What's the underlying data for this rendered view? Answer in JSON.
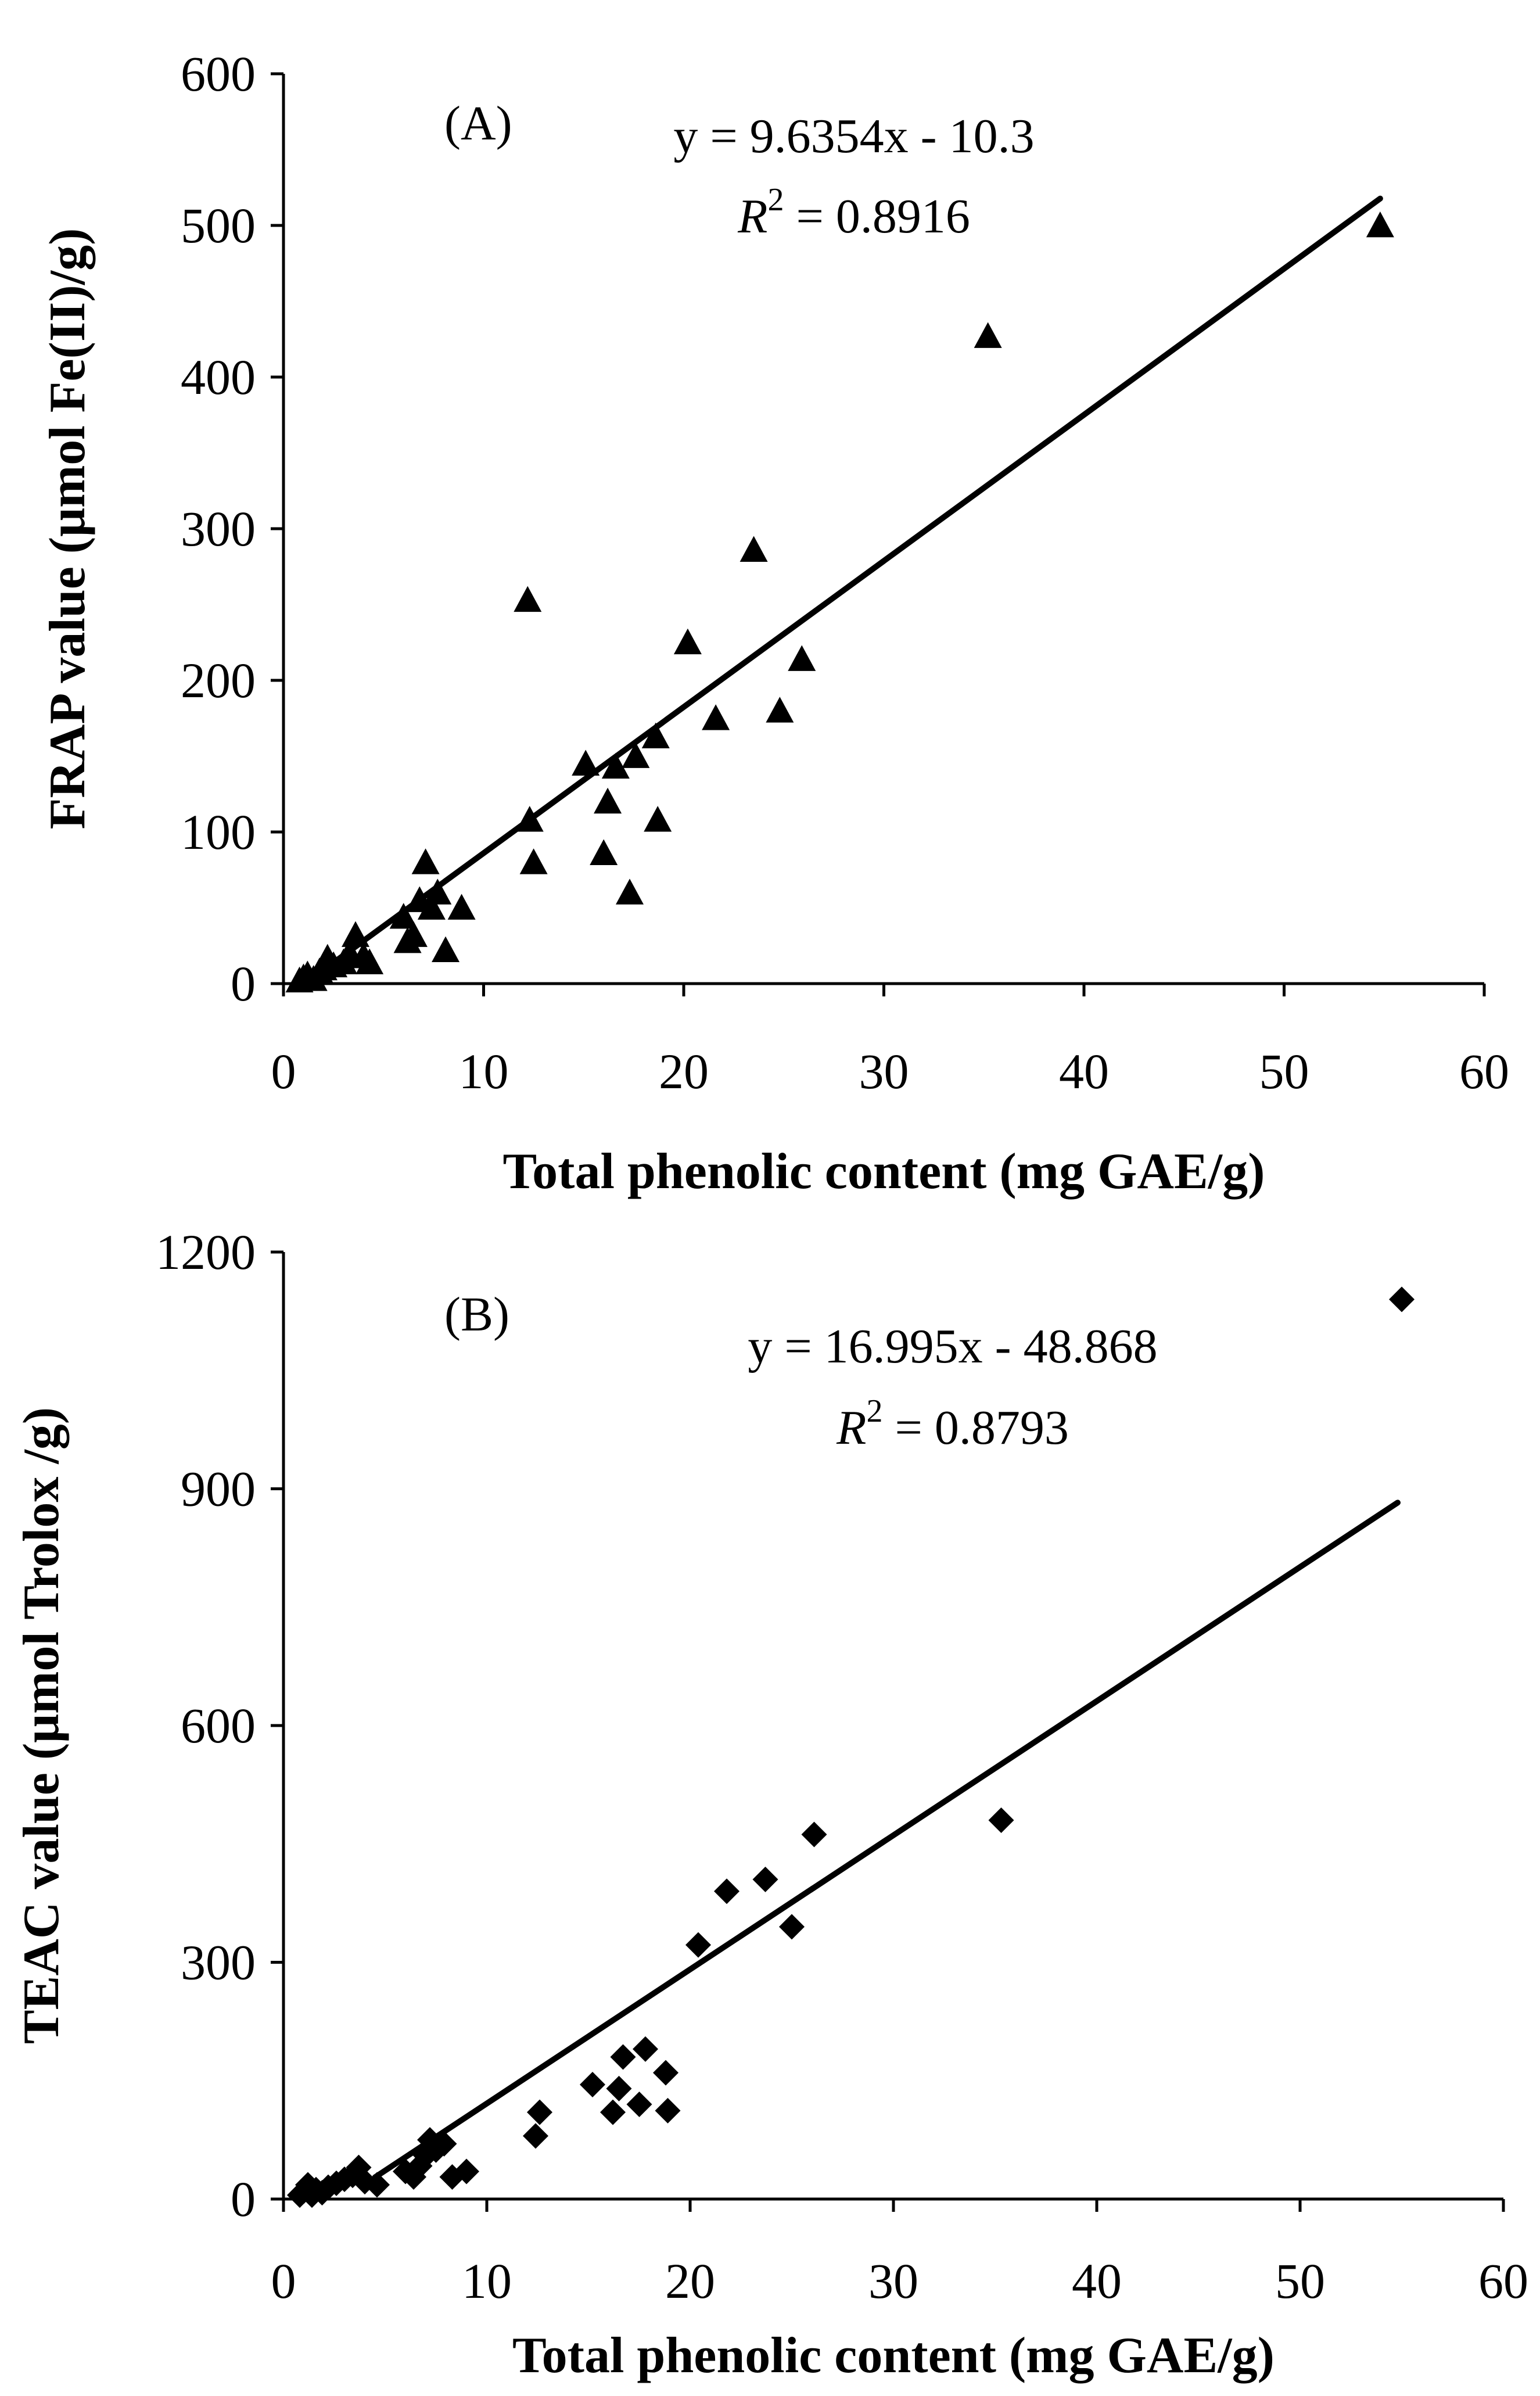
{
  "chart_data": [
    {
      "type": "scatter",
      "panel_label": "(A)",
      "xlabel": "Total phenolic content (mg GAE/g)",
      "ylabel": "FRAP value (μmol Fe(II)/g)",
      "xlim": [
        0,
        60
      ],
      "ylim": [
        0,
        600
      ],
      "xticks": [
        "0",
        "10",
        "20",
        "30",
        "40",
        "50",
        "60"
      ],
      "yticks": [
        "0",
        "100",
        "200",
        "300",
        "400",
        "500",
        "600"
      ],
      "marker": "triangle",
      "equation": "y = 9.6354x - 10.3",
      "r2_symbol": "R",
      "r2_exp": "2",
      "r2_value": " = 0.8916",
      "fit": {
        "slope": 9.6354,
        "intercept": -10.3,
        "x_range": [
          1.1,
          54.8
        ]
      },
      "points": [
        {
          "x": 0.8,
          "y": 2
        },
        {
          "x": 1.0,
          "y": 4
        },
        {
          "x": 1.2,
          "y": 6
        },
        {
          "x": 1.5,
          "y": 3
        },
        {
          "x": 1.8,
          "y": 8
        },
        {
          "x": 2.0,
          "y": 10
        },
        {
          "x": 2.2,
          "y": 17
        },
        {
          "x": 2.5,
          "y": 12
        },
        {
          "x": 3.0,
          "y": 14
        },
        {
          "x": 3.3,
          "y": 20
        },
        {
          "x": 3.6,
          "y": 32
        },
        {
          "x": 4.0,
          "y": 18
        },
        {
          "x": 4.3,
          "y": 14
        },
        {
          "x": 6.0,
          "y": 44
        },
        {
          "x": 6.2,
          "y": 28
        },
        {
          "x": 6.5,
          "y": 32
        },
        {
          "x": 6.8,
          "y": 55
        },
        {
          "x": 7.1,
          "y": 80
        },
        {
          "x": 7.4,
          "y": 50
        },
        {
          "x": 7.7,
          "y": 60
        },
        {
          "x": 8.1,
          "y": 22
        },
        {
          "x": 8.9,
          "y": 50
        },
        {
          "x": 12.2,
          "y": 253
        },
        {
          "x": 12.3,
          "y": 108
        },
        {
          "x": 12.5,
          "y": 80
        },
        {
          "x": 15.1,
          "y": 145
        },
        {
          "x": 16.0,
          "y": 86
        },
        {
          "x": 16.2,
          "y": 120
        },
        {
          "x": 16.6,
          "y": 143
        },
        {
          "x": 17.3,
          "y": 60
        },
        {
          "x": 17.6,
          "y": 150
        },
        {
          "x": 18.6,
          "y": 163
        },
        {
          "x": 18.7,
          "y": 108
        },
        {
          "x": 20.2,
          "y": 225
        },
        {
          "x": 21.6,
          "y": 175
        },
        {
          "x": 23.5,
          "y": 286
        },
        {
          "x": 24.8,
          "y": 180
        },
        {
          "x": 25.9,
          "y": 214
        },
        {
          "x": 35.2,
          "y": 427
        },
        {
          "x": 54.8,
          "y": 500
        }
      ]
    },
    {
      "type": "scatter",
      "panel_label": "(B)",
      "xlabel": "Total phenolic content (mg GAE/g)",
      "ylabel": "TEAC value (μmol Trolox /g)",
      "xlim": [
        0,
        60
      ],
      "ylim": [
        0,
        1200
      ],
      "xticks": [
        "0",
        "10",
        "20",
        "30",
        "40",
        "50",
        "60"
      ],
      "yticks": [
        "0",
        "300",
        "600",
        "900",
        "1200"
      ],
      "marker": "diamond",
      "equation": "y = 16.995x - 48.868",
      "r2_symbol": "R",
      "r2_exp": "2",
      "r2_value": " = 0.8793",
      "fit": {
        "slope": 16.995,
        "intercept": -48.868,
        "x_range": [
          4.5,
          54.8
        ]
      },
      "points": [
        {
          "x": 0.8,
          "y": 5
        },
        {
          "x": 1.0,
          "y": 10
        },
        {
          "x": 1.2,
          "y": 18
        },
        {
          "x": 1.4,
          "y": 5
        },
        {
          "x": 1.6,
          "y": 12
        },
        {
          "x": 1.9,
          "y": 8
        },
        {
          "x": 2.2,
          "y": 15
        },
        {
          "x": 2.6,
          "y": 20
        },
        {
          "x": 3.0,
          "y": 25
        },
        {
          "x": 3.4,
          "y": 30
        },
        {
          "x": 3.7,
          "y": 40
        },
        {
          "x": 4.0,
          "y": 22
        },
        {
          "x": 4.6,
          "y": 18
        },
        {
          "x": 6.0,
          "y": 35
        },
        {
          "x": 6.4,
          "y": 28
        },
        {
          "x": 6.7,
          "y": 42
        },
        {
          "x": 7.0,
          "y": 55
        },
        {
          "x": 7.2,
          "y": 75
        },
        {
          "x": 7.5,
          "y": 62
        },
        {
          "x": 7.9,
          "y": 70
        },
        {
          "x": 8.3,
          "y": 28
        },
        {
          "x": 9.0,
          "y": 35
        },
        {
          "x": 12.4,
          "y": 80
        },
        {
          "x": 12.6,
          "y": 110
        },
        {
          "x": 15.2,
          "y": 145
        },
        {
          "x": 16.2,
          "y": 110
        },
        {
          "x": 16.5,
          "y": 140
        },
        {
          "x": 16.7,
          "y": 180
        },
        {
          "x": 17.5,
          "y": 120
        },
        {
          "x": 17.8,
          "y": 190
        },
        {
          "x": 18.8,
          "y": 160
        },
        {
          "x": 18.9,
          "y": 112
        },
        {
          "x": 20.4,
          "y": 322
        },
        {
          "x": 21.8,
          "y": 390
        },
        {
          "x": 23.7,
          "y": 405
        },
        {
          "x": 25.0,
          "y": 345
        },
        {
          "x": 26.1,
          "y": 462
        },
        {
          "x": 35.3,
          "y": 480
        },
        {
          "x": 55.0,
          "y": 1140
        }
      ]
    }
  ]
}
